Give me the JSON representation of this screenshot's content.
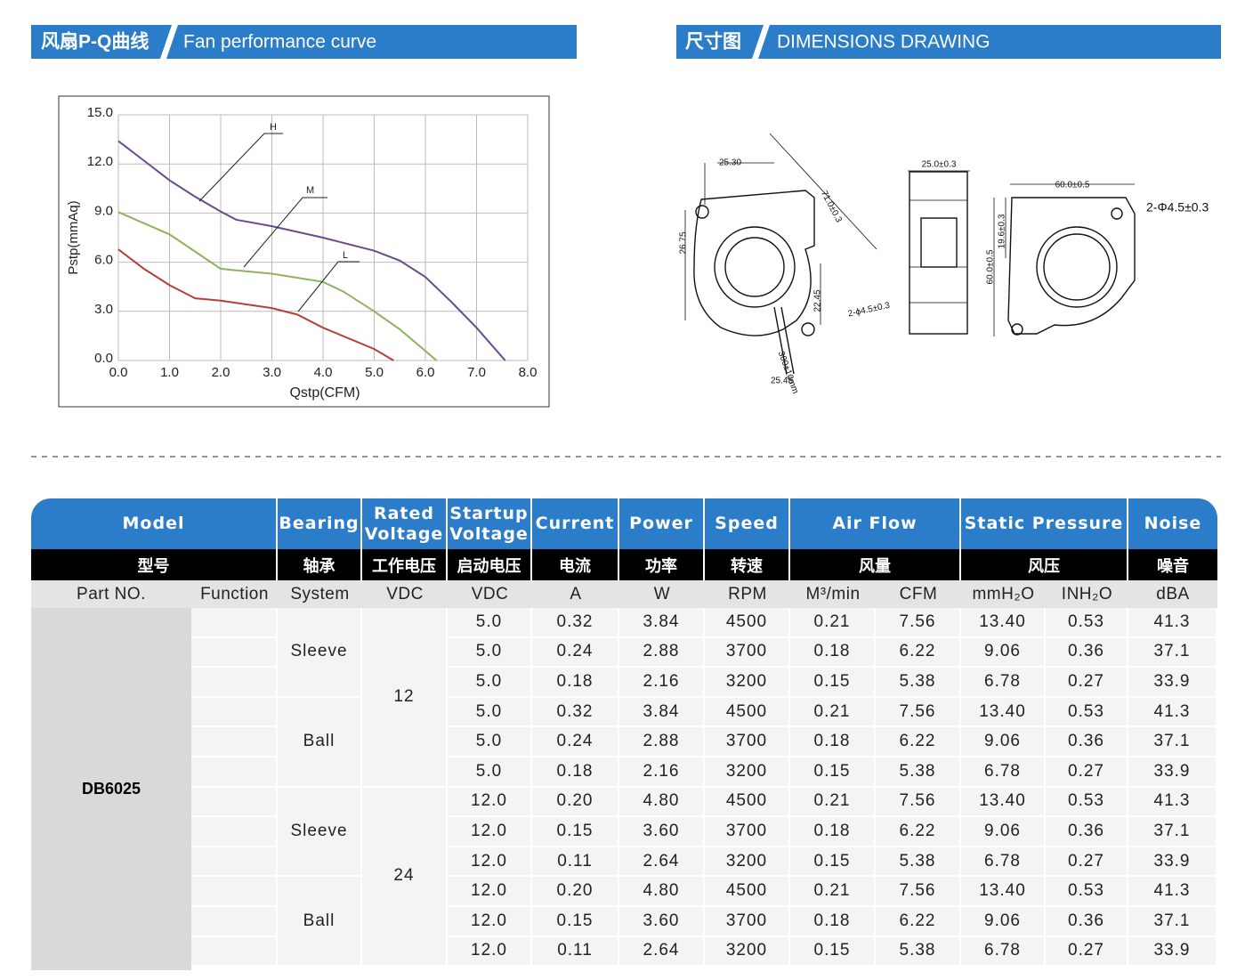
{
  "sections": {
    "performance": {
      "title_cn": "风扇P-Q曲线",
      "title_en": "Fan performance curve"
    },
    "dimensions": {
      "title_cn": "尺寸图",
      "title_en": "DIMENSIONS DRAWING"
    }
  },
  "chart_data": {
    "type": "line",
    "x_label": "Qstp(CFM)",
    "y_label": "Pstp(mmAq)",
    "xlim": [
      0,
      8
    ],
    "ylim": [
      0,
      15
    ],
    "xticks": [
      {
        "value": 0,
        "label": "0.0"
      },
      {
        "value": 1,
        "label": "1.0"
      },
      {
        "value": 2,
        "label": "2.0"
      },
      {
        "value": 3,
        "label": "3.0"
      },
      {
        "value": 4,
        "label": "4.0"
      },
      {
        "value": 5,
        "label": "5.0"
      },
      {
        "value": 6,
        "label": "6.0"
      },
      {
        "value": 7,
        "label": "7.0"
      },
      {
        "value": 8,
        "label": "8.0"
      }
    ],
    "yticks": [
      {
        "value": 0,
        "label": "0.0"
      },
      {
        "value": 3,
        "label": "3.0"
      },
      {
        "value": 6,
        "label": "6.0"
      },
      {
        "value": 9,
        "label": "9.0"
      },
      {
        "value": 12,
        "label": "12.0"
      },
      {
        "value": 15,
        "label": "15.0"
      }
    ],
    "grid": true,
    "series": [
      {
        "name": "H",
        "color": "#6a4a8c",
        "x": [
          0,
          0.5,
          1,
          1.5,
          2,
          2.3,
          3,
          4,
          5,
          5.5,
          6,
          6.5,
          7,
          7.56
        ],
        "values": [
          13.4,
          12.2,
          11.0,
          10.0,
          9.1,
          8.6,
          8.2,
          7.5,
          6.7,
          6.1,
          5.1,
          3.6,
          2.0,
          0
        ]
      },
      {
        "name": "M",
        "color": "#8fb35a",
        "x": [
          0,
          1,
          2,
          3,
          4,
          4.4,
          5,
          5.5,
          6.22
        ],
        "values": [
          9.06,
          7.7,
          5.6,
          5.3,
          4.8,
          4.2,
          3.0,
          1.9,
          0
        ]
      },
      {
        "name": "L",
        "color": "#b5403a",
        "x": [
          0,
          0.5,
          1,
          1.5,
          2,
          3,
          3.5,
          4,
          5,
          5.38
        ],
        "values": [
          6.78,
          5.6,
          4.6,
          3.8,
          3.65,
          3.2,
          2.8,
          2.0,
          0.7,
          0
        ]
      }
    ]
  },
  "drawing": {
    "labels": [
      "25.30",
      "71.0±0.3",
      "26.75",
      "22.45",
      "2-ϕ4.5±0.3",
      "300±10mm",
      "25.45",
      "25.0±0.3",
      "60.0±0.5",
      "19.6±0.3",
      "60.0±0.5",
      "2-Φ4.5±0.3"
    ]
  },
  "table": {
    "header_en": [
      "Model",
      "Bearing",
      "Rated Voltage",
      "Startup Voltage",
      "Current",
      "Power",
      "Speed",
      "Air Flow",
      "Static Pressure",
      "Noise"
    ],
    "header_cn": [
      "型号",
      "轴承",
      "工作电压",
      "启动电压",
      "电流",
      "功率",
      "转速",
      "风量",
      "风压",
      "噪音"
    ],
    "units": [
      "Part NO.",
      "Function",
      "System",
      "VDC",
      "VDC",
      "A",
      "W",
      "RPM",
      "M³/min",
      "CFM",
      "mmH₂O",
      "INH₂O",
      "dBA"
    ],
    "model": "DB6025",
    "groups": [
      {
        "rated_voltage": "12",
        "bearings": [
          {
            "name": "Sleeve",
            "rows": [
              [
                "5.0",
                "0.32",
                "3.84",
                "4500",
                "0.21",
                "7.56",
                "13.40",
                "0.53",
                "41.3"
              ],
              [
                "5.0",
                "0.24",
                "2.88",
                "3700",
                "0.18",
                "6.22",
                "9.06",
                "0.36",
                "37.1"
              ],
              [
                "5.0",
                "0.18",
                "2.16",
                "3200",
                "0.15",
                "5.38",
                "6.78",
                "0.27",
                "33.9"
              ]
            ]
          },
          {
            "name": "Ball",
            "rows": [
              [
                "5.0",
                "0.32",
                "3.84",
                "4500",
                "0.21",
                "7.56",
                "13.40",
                "0.53",
                "41.3"
              ],
              [
                "5.0",
                "0.24",
                "2.88",
                "3700",
                "0.18",
                "6.22",
                "9.06",
                "0.36",
                "37.1"
              ],
              [
                "5.0",
                "0.18",
                "2.16",
                "3200",
                "0.15",
                "5.38",
                "6.78",
                "0.27",
                "33.9"
              ]
            ]
          }
        ]
      },
      {
        "rated_voltage": "24",
        "bearings": [
          {
            "name": "Sleeve",
            "rows": [
              [
                "12.0",
                "0.20",
                "4.80",
                "4500",
                "0.21",
                "7.56",
                "13.40",
                "0.53",
                "41.3"
              ],
              [
                "12.0",
                "0.15",
                "3.60",
                "3700",
                "0.18",
                "6.22",
                "9.06",
                "0.36",
                "37.1"
              ],
              [
                "12.0",
                "0.11",
                "2.64",
                "3200",
                "0.15",
                "5.38",
                "6.78",
                "0.27",
                "33.9"
              ]
            ]
          },
          {
            "name": "Ball",
            "rows": [
              [
                "12.0",
                "0.20",
                "4.80",
                "4500",
                "0.21",
                "7.56",
                "13.40",
                "0.53",
                "41.3"
              ],
              [
                "12.0",
                "0.15",
                "3.60",
                "3700",
                "0.18",
                "6.22",
                "9.06",
                "0.36",
                "37.1"
              ],
              [
                "12.0",
                "0.11",
                "2.64",
                "3200",
                "0.15",
                "5.38",
                "6.78",
                "0.27",
                "33.9"
              ]
            ]
          }
        ]
      }
    ]
  }
}
